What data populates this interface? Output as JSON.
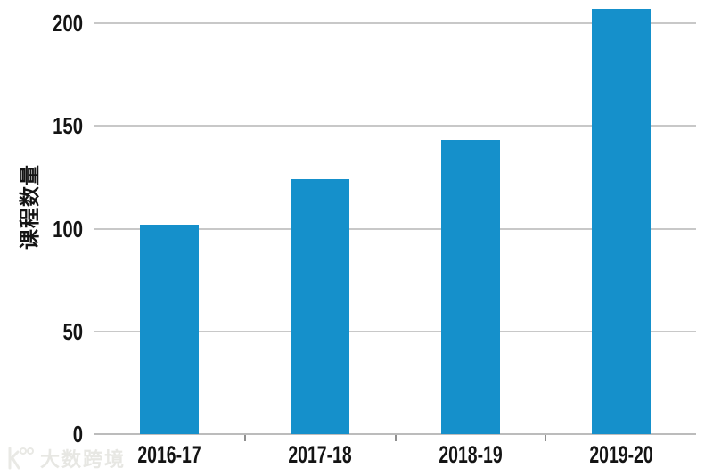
{
  "chart_data": {
    "type": "bar",
    "categories": [
      "2016-17",
      "2017-18",
      "2018-19",
      "2019-20"
    ],
    "values": [
      102,
      124,
      143,
      207
    ],
    "title": "",
    "xlabel": "",
    "ylabel": "课程数量",
    "ylim": [
      0,
      211
    ],
    "yticks": [
      0,
      50,
      100,
      150,
      200
    ],
    "grid": true,
    "legend": "none",
    "bar_color": "#1590cb",
    "gridline_color": "#c8c8c8",
    "text_color": "#141414",
    "background": "#ffffff"
  },
  "watermark": {
    "text": "大数跨境",
    "color": "#e7e7e3"
  }
}
